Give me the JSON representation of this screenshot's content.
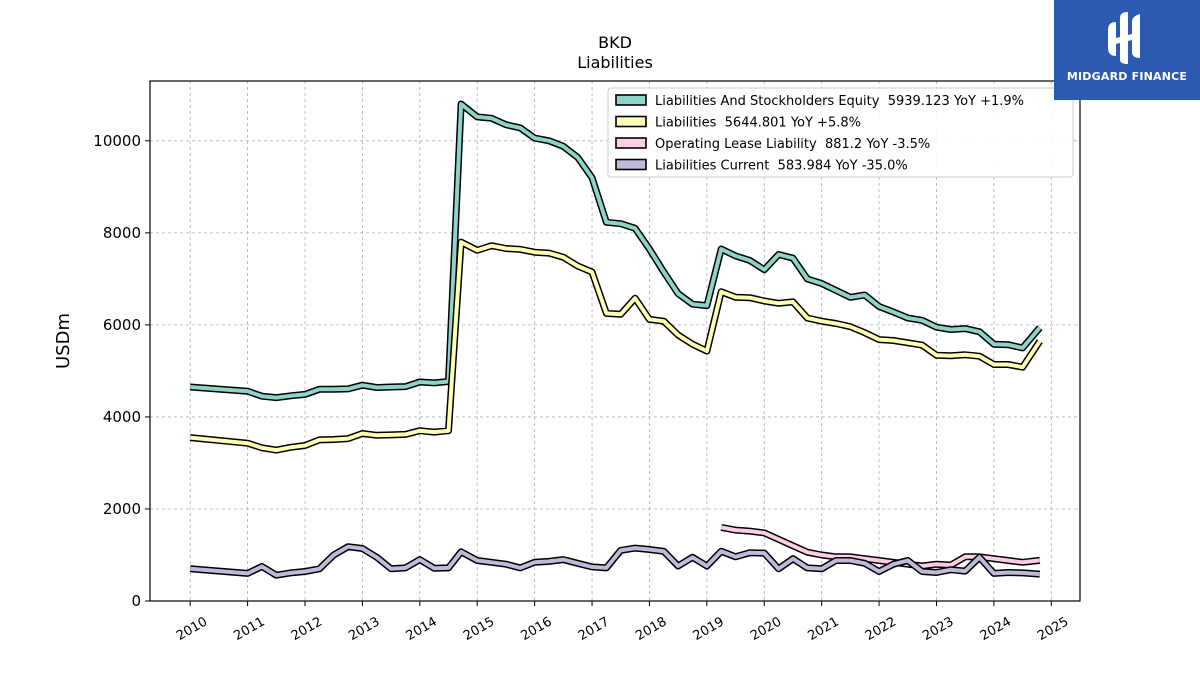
{
  "chart_data": {
    "type": "line",
    "title": "BKD",
    "subtitle": "Liabilities",
    "ylabel": "USDm",
    "xlabel": "",
    "xlim": [
      2009.3,
      2025.5
    ],
    "ylim": [
      0,
      11300
    ],
    "grid": true,
    "legend_position": "top-right",
    "x_ticks": [
      2010,
      2011,
      2012,
      2013,
      2014,
      2015,
      2016,
      2017,
      2018,
      2019,
      2020,
      2021,
      2022,
      2023,
      2024,
      2025
    ],
    "x_tick_labels": [
      "2010",
      "2011",
      "2012",
      "2013",
      "2014",
      "2015",
      "2016",
      "2017",
      "2018",
      "2019",
      "2020",
      "2021",
      "2022",
      "2023",
      "2024",
      "2025"
    ],
    "y_ticks": [
      0,
      2000,
      4000,
      6000,
      8000,
      10000
    ],
    "y_tick_labels": [
      "0",
      "2000",
      "4000",
      "6000",
      "8000",
      "10000"
    ],
    "series": [
      {
        "name": "Liabilities And Stockholders Equity",
        "legend": "Liabilities And Stockholders Equity  5939.123 YoY +1.9%",
        "color": "#8dd3c7",
        "points": [
          [
            2010.0,
            4650
          ],
          [
            2011.0,
            4560
          ],
          [
            2011.25,
            4450
          ],
          [
            2011.5,
            4420
          ],
          [
            2011.75,
            4460
          ],
          [
            2012.0,
            4490
          ],
          [
            2012.25,
            4600
          ],
          [
            2012.5,
            4600
          ],
          [
            2012.75,
            4610
          ],
          [
            2013.0,
            4690
          ],
          [
            2013.25,
            4640
          ],
          [
            2013.5,
            4650
          ],
          [
            2013.75,
            4660
          ],
          [
            2014.0,
            4760
          ],
          [
            2014.25,
            4740
          ],
          [
            2014.5,
            4770
          ],
          [
            2014.72,
            10800
          ],
          [
            2015.0,
            10520
          ],
          [
            2015.25,
            10490
          ],
          [
            2015.5,
            10350
          ],
          [
            2015.75,
            10280
          ],
          [
            2016.0,
            10060
          ],
          [
            2016.25,
            10000
          ],
          [
            2016.5,
            9880
          ],
          [
            2016.75,
            9640
          ],
          [
            2017.0,
            9200
          ],
          [
            2017.25,
            8230
          ],
          [
            2017.5,
            8200
          ],
          [
            2017.75,
            8100
          ],
          [
            2018.0,
            7650
          ],
          [
            2018.25,
            7150
          ],
          [
            2018.5,
            6680
          ],
          [
            2018.75,
            6450
          ],
          [
            2019.0,
            6420
          ],
          [
            2019.25,
            7650
          ],
          [
            2019.5,
            7500
          ],
          [
            2019.75,
            7400
          ],
          [
            2020.0,
            7200
          ],
          [
            2020.25,
            7530
          ],
          [
            2020.5,
            7450
          ],
          [
            2020.75,
            7000
          ],
          [
            2021.0,
            6900
          ],
          [
            2021.25,
            6750
          ],
          [
            2021.5,
            6600
          ],
          [
            2021.75,
            6650
          ],
          [
            2022.0,
            6400
          ],
          [
            2022.25,
            6280
          ],
          [
            2022.5,
            6150
          ],
          [
            2022.75,
            6100
          ],
          [
            2023.0,
            5950
          ],
          [
            2023.25,
            5900
          ],
          [
            2023.5,
            5920
          ],
          [
            2023.75,
            5850
          ],
          [
            2024.0,
            5580
          ],
          [
            2024.25,
            5570
          ],
          [
            2024.5,
            5500
          ],
          [
            2024.8,
            5939.123
          ]
        ]
      },
      {
        "name": "Liabilities",
        "legend": "Liabilities  5644.801 YoY +5.8%",
        "color": "#ffffb3",
        "points": [
          [
            2010.0,
            3550
          ],
          [
            2011.0,
            3430
          ],
          [
            2011.25,
            3330
          ],
          [
            2011.5,
            3280
          ],
          [
            2011.75,
            3340
          ],
          [
            2012.0,
            3380
          ],
          [
            2012.25,
            3500
          ],
          [
            2012.5,
            3510
          ],
          [
            2012.75,
            3530
          ],
          [
            2013.0,
            3640
          ],
          [
            2013.25,
            3600
          ],
          [
            2013.5,
            3610
          ],
          [
            2013.75,
            3620
          ],
          [
            2014.0,
            3700
          ],
          [
            2014.25,
            3670
          ],
          [
            2014.5,
            3700
          ],
          [
            2014.72,
            7800
          ],
          [
            2015.0,
            7620
          ],
          [
            2015.25,
            7720
          ],
          [
            2015.5,
            7660
          ],
          [
            2015.75,
            7640
          ],
          [
            2016.0,
            7580
          ],
          [
            2016.25,
            7560
          ],
          [
            2016.5,
            7470
          ],
          [
            2016.75,
            7280
          ],
          [
            2017.0,
            7150
          ],
          [
            2017.25,
            6250
          ],
          [
            2017.5,
            6230
          ],
          [
            2017.75,
            6580
          ],
          [
            2018.0,
            6120
          ],
          [
            2018.25,
            6080
          ],
          [
            2018.5,
            5780
          ],
          [
            2018.75,
            5580
          ],
          [
            2019.0,
            5430
          ],
          [
            2019.25,
            6720
          ],
          [
            2019.5,
            6600
          ],
          [
            2019.75,
            6590
          ],
          [
            2020.0,
            6520
          ],
          [
            2020.25,
            6470
          ],
          [
            2020.5,
            6500
          ],
          [
            2020.75,
            6150
          ],
          [
            2021.0,
            6080
          ],
          [
            2021.25,
            6030
          ],
          [
            2021.5,
            5960
          ],
          [
            2021.75,
            5830
          ],
          [
            2022.0,
            5680
          ],
          [
            2022.25,
            5660
          ],
          [
            2022.5,
            5610
          ],
          [
            2022.75,
            5560
          ],
          [
            2023.0,
            5340
          ],
          [
            2023.25,
            5330
          ],
          [
            2023.5,
            5350
          ],
          [
            2023.75,
            5320
          ],
          [
            2024.0,
            5140
          ],
          [
            2024.25,
            5140
          ],
          [
            2024.5,
            5080
          ],
          [
            2024.8,
            5644.801
          ]
        ]
      },
      {
        "name": "Operating Lease Liability",
        "legend": "Operating Lease Liability  881.2 YoY -3.5%",
        "color": "#fccde5",
        "points": [
          [
            2019.25,
            1600
          ],
          [
            2019.5,
            1540
          ],
          [
            2019.75,
            1520
          ],
          [
            2020.0,
            1480
          ],
          [
            2020.25,
            1340
          ],
          [
            2020.5,
            1200
          ],
          [
            2020.75,
            1060
          ],
          [
            2021.0,
            1000
          ],
          [
            2021.25,
            960
          ],
          [
            2021.5,
            960
          ],
          [
            2021.75,
            920
          ],
          [
            2022.0,
            880
          ],
          [
            2022.25,
            840
          ],
          [
            2022.5,
            800
          ],
          [
            2022.75,
            760
          ],
          [
            2023.0,
            800
          ],
          [
            2023.25,
            780
          ],
          [
            2023.5,
            960
          ],
          [
            2023.75,
            960
          ],
          [
            2024.0,
            920
          ],
          [
            2024.25,
            880
          ],
          [
            2024.5,
            840
          ],
          [
            2024.8,
            881.2
          ]
        ]
      },
      {
        "name": "Liabilities Current",
        "legend": "Liabilities Current  583.984 YoY -35.0%",
        "color": "#bebada",
        "points": [
          [
            2010.0,
            700
          ],
          [
            2011.0,
            600
          ],
          [
            2011.25,
            750
          ],
          [
            2011.5,
            560
          ],
          [
            2011.75,
            610
          ],
          [
            2012.0,
            640
          ],
          [
            2012.25,
            700
          ],
          [
            2012.5,
            1000
          ],
          [
            2012.75,
            1180
          ],
          [
            2013.0,
            1140
          ],
          [
            2013.25,
            950
          ],
          [
            2013.5,
            700
          ],
          [
            2013.75,
            720
          ],
          [
            2014.0,
            900
          ],
          [
            2014.25,
            710
          ],
          [
            2014.5,
            720
          ],
          [
            2014.72,
            1070
          ],
          [
            2015.0,
            880
          ],
          [
            2015.25,
            840
          ],
          [
            2015.5,
            800
          ],
          [
            2015.75,
            720
          ],
          [
            2016.0,
            840
          ],
          [
            2016.25,
            860
          ],
          [
            2016.5,
            900
          ],
          [
            2016.75,
            820
          ],
          [
            2017.0,
            740
          ],
          [
            2017.25,
            720
          ],
          [
            2017.5,
            1100
          ],
          [
            2017.75,
            1150
          ],
          [
            2018.0,
            1120
          ],
          [
            2018.25,
            1080
          ],
          [
            2018.5,
            760
          ],
          [
            2018.75,
            950
          ],
          [
            2019.0,
            760
          ],
          [
            2019.25,
            1080
          ],
          [
            2019.5,
            960
          ],
          [
            2019.75,
            1050
          ],
          [
            2020.0,
            1040
          ],
          [
            2020.25,
            700
          ],
          [
            2020.5,
            920
          ],
          [
            2020.75,
            720
          ],
          [
            2021.0,
            700
          ],
          [
            2021.25,
            880
          ],
          [
            2021.5,
            880
          ],
          [
            2021.75,
            820
          ],
          [
            2022.0,
            640
          ],
          [
            2022.25,
            800
          ],
          [
            2022.5,
            880
          ],
          [
            2022.75,
            640
          ],
          [
            2023.0,
            620
          ],
          [
            2023.25,
            680
          ],
          [
            2023.5,
            650
          ],
          [
            2023.75,
            950
          ],
          [
            2024.0,
            600
          ],
          [
            2024.25,
            620
          ],
          [
            2024.5,
            610
          ],
          [
            2024.8,
            583.984
          ]
        ]
      }
    ]
  },
  "logo": {
    "text": "MIDGARD FINANCE",
    "color": "#2b5ab0"
  }
}
